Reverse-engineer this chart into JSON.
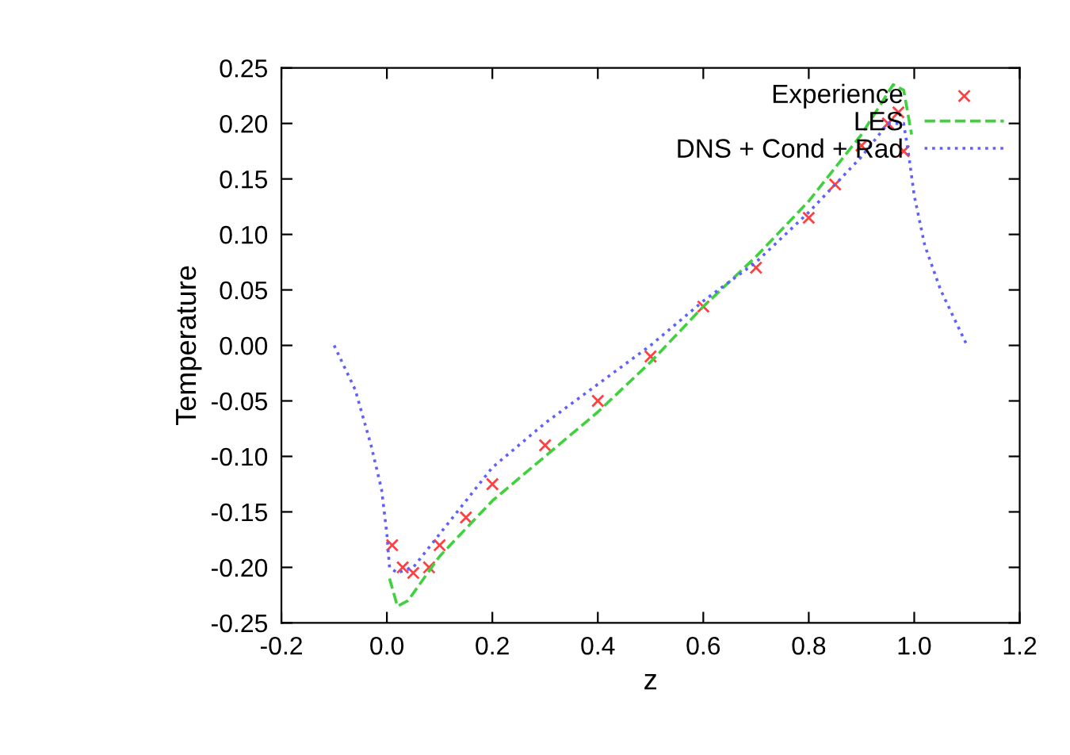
{
  "chart_data": {
    "type": "line",
    "xlabel": "z",
    "ylabel": "Temperature",
    "xlim": [
      -0.2,
      1.2
    ],
    "xticks": [
      {
        "value": -0.2,
        "label": "-0.2"
      },
      {
        "value": 0.0,
        "label": "0.0"
      },
      0.2,
      0.4,
      0.6,
      0.8,
      {
        "value": 1.0,
        "label": "1.0"
      },
      1.2
    ],
    "ylim": [
      -0.25,
      0.25
    ],
    "yticks": [
      {
        "value": -0.25,
        "label": "-0.25"
      },
      {
        "value": -0.2,
        "label": "-0.20"
      },
      {
        "value": -0.15,
        "label": "-0.15"
      },
      {
        "value": -0.1,
        "label": "-0.10"
      },
      {
        "value": -0.05,
        "label": "-0.05"
      },
      {
        "value": 0.0,
        "label": "0.00"
      },
      {
        "value": 0.05,
        "label": "0.05"
      },
      {
        "value": 0.1,
        "label": "0.10"
      },
      {
        "value": 0.15,
        "label": "0.15"
      },
      {
        "value": 0.2,
        "label": "0.20"
      },
      {
        "value": 0.25,
        "label": "0.25"
      }
    ],
    "grid": false,
    "legend": "top right",
    "series": [
      {
        "name": "Experience",
        "color": "#ff4040",
        "type": "scatter",
        "marker": "cross",
        "x": [
          0.01,
          0.03,
          0.05,
          0.08,
          0.1,
          0.15,
          0.2,
          0.3,
          0.4,
          0.5,
          0.6,
          0.7,
          0.8,
          0.85,
          0.9,
          0.95,
          0.97,
          0.98
        ],
        "values": [
          -0.18,
          -0.2,
          -0.205,
          -0.2,
          -0.18,
          -0.155,
          -0.125,
          -0.09,
          -0.05,
          -0.01,
          0.035,
          0.07,
          0.115,
          0.145,
          0.18,
          0.2,
          0.21,
          0.175
        ]
      },
      {
        "name": "LES",
        "color": "#40d040",
        "line_style": "dashed",
        "x": [
          0.005,
          0.02,
          0.04,
          0.1,
          0.2,
          0.3,
          0.4,
          0.5,
          0.6,
          0.7,
          0.8,
          0.9,
          0.96,
          0.98,
          0.995
        ],
        "values": [
          -0.21,
          -0.235,
          -0.23,
          -0.19,
          -0.14,
          -0.1,
          -0.06,
          -0.015,
          0.035,
          0.08,
          0.13,
          0.19,
          0.235,
          0.23,
          0.19
        ]
      },
      {
        "name": "DNS + Cond + Rad",
        "color": "#6060ff",
        "line_style": "dotted",
        "x": [
          -0.1,
          -0.06,
          -0.03,
          -0.01,
          0.0,
          0.005,
          0.02,
          0.05,
          0.1,
          0.2,
          0.3,
          0.4,
          0.5,
          0.6,
          0.7,
          0.8,
          0.9,
          0.95,
          0.98,
          0.99,
          1.0,
          1.02,
          1.05,
          1.1
        ],
        "values": [
          0.0,
          -0.04,
          -0.09,
          -0.13,
          -0.17,
          -0.2,
          -0.205,
          -0.2,
          -0.17,
          -0.11,
          -0.07,
          -0.035,
          0.0,
          0.04,
          0.075,
          0.12,
          0.17,
          0.2,
          0.2,
          0.17,
          0.135,
          0.09,
          0.05,
          0.0
        ]
      }
    ]
  }
}
